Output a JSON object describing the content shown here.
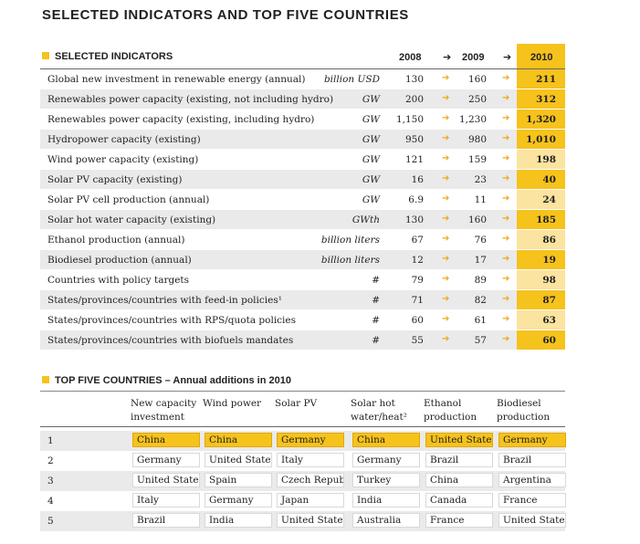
{
  "title": "SELECTED INDICATORS AND TOP FIVE COUNTRIES",
  "indicators": {
    "heading": "SELECTED INDICATORS",
    "years": [
      "2008",
      "2009",
      "2010"
    ],
    "arrow": "➔",
    "row_arrow": "➔",
    "rows": [
      {
        "label": "Global new investment in renewable energy (annual)",
        "unit": "billion USD",
        "v2008": "130",
        "v2009": "160",
        "v2010": "211"
      },
      {
        "label": "Renewables power capacity (existing, not including hydro)",
        "unit": "GW",
        "v2008": "200",
        "v2009": "250",
        "v2010": "312"
      },
      {
        "label": "Renewables power capacity (existing, including hydro)",
        "unit": "GW",
        "v2008": "1,150",
        "v2009": "1,230",
        "v2010": "1,320"
      },
      {
        "label": "Hydropower capacity (existing)",
        "unit": "GW",
        "v2008": "950",
        "v2009": "980",
        "v2010": "1,010"
      },
      {
        "label": "Wind power capacity (existing)",
        "unit": "GW",
        "v2008": "121",
        "v2009": "159",
        "v2010": "198"
      },
      {
        "label": "Solar PV capacity (existing)",
        "unit": "GW",
        "v2008": "16",
        "v2009": "23",
        "v2010": "40"
      },
      {
        "label": "Solar PV cell production (annual)",
        "unit": "GW",
        "v2008": "6.9",
        "v2009": "11",
        "v2010": "24"
      },
      {
        "label": "Solar hot water capacity (existing)",
        "unit": "GWth",
        "v2008": "130",
        "v2009": "160",
        "v2010": "185"
      },
      {
        "label": "Ethanol production (annual)",
        "unit": "billion liters",
        "v2008": "67",
        "v2009": "76",
        "v2010": "86"
      },
      {
        "label": "Biodiesel production (annual)",
        "unit": "billion liters",
        "v2008": "12",
        "v2009": "17",
        "v2010": "19"
      },
      {
        "label": "Countries with policy targets",
        "unit": "#",
        "v2008": "79",
        "v2009": "89",
        "v2010": "98"
      },
      {
        "label": "States/provinces/countries with feed-in policies¹",
        "unit": "#",
        "v2008": "71",
        "v2009": "82",
        "v2010": "87"
      },
      {
        "label": "States/provinces/countries with RPS/quota policies",
        "unit": "#",
        "v2008": "60",
        "v2009": "61",
        "v2010": "63"
      },
      {
        "label": "States/provinces/countries with biofuels mandates",
        "unit": "#",
        "v2008": "55",
        "v2009": "57",
        "v2010": "60"
      }
    ],
    "shade_2010": [
      "#f6c21c",
      "#f6c21c",
      "#f6c21c",
      "#f6c21c",
      "#fbe3a0",
      "#f6c21c",
      "#fbe3a0",
      "#f6c21c",
      "#fbe3a0",
      "#f6c21c",
      "#fbe3a0",
      "#f6c21c",
      "#fbe3a0",
      "#f6c21c"
    ]
  },
  "top_five": {
    "heading": "TOP FIVE COUNTRIES – Annual additions in 2010",
    "columns": [
      [
        "New capacity",
        "investment"
      ],
      [
        "Wind power",
        ""
      ],
      [
        "Solar PV",
        ""
      ],
      [
        "Solar hot",
        "water/heat²"
      ],
      [
        "Ethanol",
        "production"
      ],
      [
        "Biodiesel",
        "production"
      ]
    ],
    "rows": [
      {
        "rank": "1",
        "cells": [
          "China",
          "China",
          "Germany",
          "China",
          "United States",
          "Germany"
        ]
      },
      {
        "rank": "2",
        "cells": [
          "Germany",
          "United States",
          "Italy",
          "Germany",
          "Brazil",
          "Brazil"
        ]
      },
      {
        "rank": "3",
        "cells": [
          "United States",
          "Spain",
          "Czech Republic",
          "Turkey",
          "China",
          "Argentina"
        ]
      },
      {
        "rank": "4",
        "cells": [
          "Italy",
          "Germany",
          "Japan",
          "India",
          "Canada",
          "France"
        ]
      },
      {
        "rank": "5",
        "cells": [
          "Brazil",
          "India",
          "United States",
          "Australia",
          "France",
          "United States"
        ]
      }
    ],
    "highlight_color": "#f6c21c"
  }
}
